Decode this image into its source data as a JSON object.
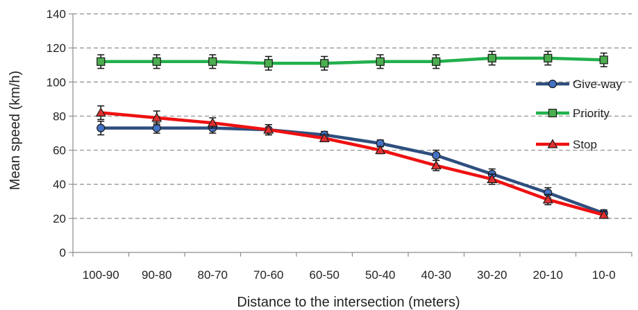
{
  "chart_data": {
    "type": "line",
    "title": "",
    "xlabel": "Distance to the intersection (meters)",
    "ylabel": "Mean speed (km/h)",
    "categories": [
      "100-90",
      "90-80",
      "80-70",
      "70-60",
      "60-50",
      "50-40",
      "40-30",
      "30-20",
      "20-10",
      "10-0"
    ],
    "ylim": [
      0,
      140
    ],
    "yticks": [
      0,
      20,
      40,
      60,
      80,
      100,
      120,
      140
    ],
    "grid": "horizontal-dashed",
    "legend_position": "right",
    "error_bars": true,
    "series": [
      {
        "name": "Give-way",
        "color": "#2e4f7e",
        "marker": "circle",
        "marker_fill": "#4472c4",
        "values": [
          73,
          73,
          73,
          72,
          69,
          64,
          57,
          46,
          35,
          23
        ],
        "errors": [
          4,
          3,
          3,
          3,
          2,
          2,
          3,
          3,
          3,
          2
        ]
      },
      {
        "name": "Priority",
        "color": "#22b04c",
        "marker": "square",
        "marker_fill": "#4cae4f",
        "values": [
          112,
          112,
          112,
          111,
          111,
          112,
          112,
          114,
          114,
          113
        ],
        "errors": [
          4,
          4,
          4,
          4,
          4,
          4,
          4,
          4,
          4,
          4
        ]
      },
      {
        "name": "Stop",
        "color": "#ee1111",
        "marker": "triangle",
        "marker_fill": "#e03030",
        "values": [
          82,
          79,
          76,
          72,
          67,
          60,
          51,
          43,
          31,
          22
        ],
        "errors": [
          4,
          4,
          3,
          3,
          2,
          2,
          3,
          3,
          3,
          2
        ]
      }
    ]
  }
}
